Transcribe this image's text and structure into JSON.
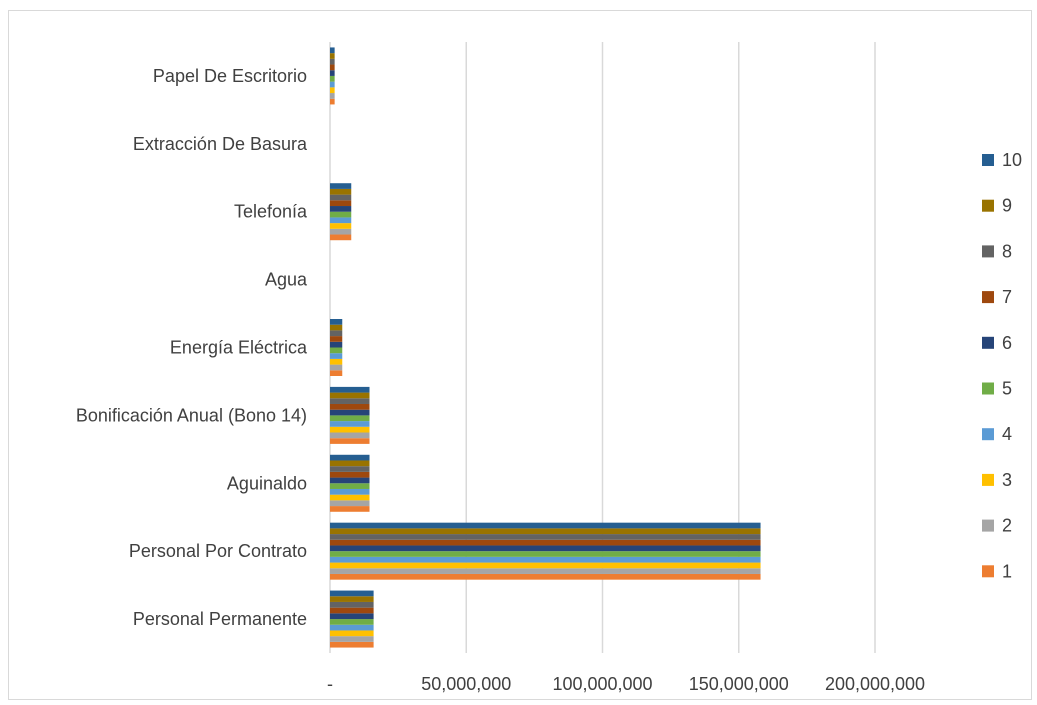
{
  "chart_data": {
    "type": "bar",
    "orientation": "horizontal",
    "title": "",
    "xlabel": "",
    "ylabel": "",
    "xlim": [
      0,
      200000000
    ],
    "x_ticks": [
      0,
      50000000,
      100000000,
      150000000,
      200000000
    ],
    "x_tick_labels": [
      "-",
      "50,000,000",
      "100,000,000",
      "150,000,000",
      "200,000,000"
    ],
    "grid": "vertical",
    "legend_position": "right",
    "categories": [
      "Personal Permanente",
      "Personal Por Contrato",
      "Aguinaldo",
      "Bonificación Anual (Bono 14)",
      "Energía Eléctrica",
      "Agua",
      "Telefonía",
      "Extracción De Basura",
      "Papel De Escritorio"
    ],
    "series": [
      {
        "name": "1",
        "color": "#ED7D31",
        "values": [
          16000000,
          158000000,
          14500000,
          14500000,
          4500000,
          0,
          7800000,
          0,
          1700000
        ]
      },
      {
        "name": "2",
        "color": "#A5A5A5",
        "values": [
          16000000,
          158000000,
          14500000,
          14500000,
          4500000,
          0,
          7800000,
          0,
          1700000
        ]
      },
      {
        "name": "3",
        "color": "#FFC000",
        "values": [
          16000000,
          158000000,
          14500000,
          14500000,
          4500000,
          0,
          7800000,
          0,
          1700000
        ]
      },
      {
        "name": "4",
        "color": "#5B9BD5",
        "values": [
          16000000,
          158000000,
          14500000,
          14500000,
          4500000,
          0,
          7800000,
          0,
          1700000
        ]
      },
      {
        "name": "5",
        "color": "#70AD47",
        "values": [
          16000000,
          158000000,
          14500000,
          14500000,
          4500000,
          0,
          7800000,
          0,
          1700000
        ]
      },
      {
        "name": "6",
        "color": "#264478",
        "values": [
          16000000,
          158000000,
          14500000,
          14500000,
          4500000,
          0,
          7800000,
          0,
          1700000
        ]
      },
      {
        "name": "7",
        "color": "#9E480E",
        "values": [
          16000000,
          158000000,
          14500000,
          14500000,
          4500000,
          0,
          7800000,
          0,
          1700000
        ]
      },
      {
        "name": "8",
        "color": "#636363",
        "values": [
          16000000,
          158000000,
          14500000,
          14500000,
          4500000,
          0,
          7800000,
          0,
          1700000
        ]
      },
      {
        "name": "9",
        "color": "#997300",
        "values": [
          16000000,
          158000000,
          14500000,
          14500000,
          4500000,
          0,
          7800000,
          0,
          1700000
        ]
      },
      {
        "name": "10",
        "color": "#255E91",
        "values": [
          16000000,
          158000000,
          14500000,
          14500000,
          4500000,
          0,
          7800000,
          0,
          1700000
        ]
      }
    ]
  }
}
